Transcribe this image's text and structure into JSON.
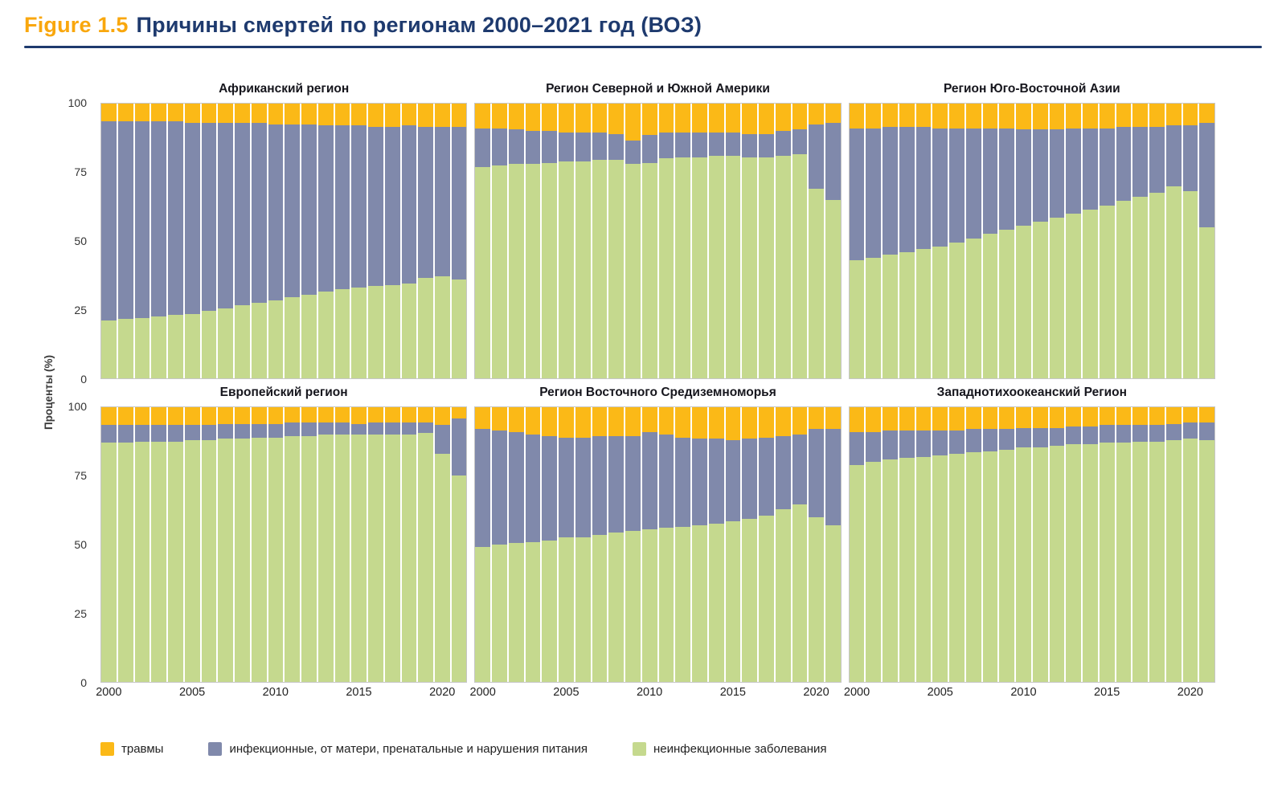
{
  "header": {
    "figure_label": "Figure 1.5",
    "title": "Причины смертей по регионам 2000–2021 год (ВОЗ)"
  },
  "colors": {
    "figure_orange": "#F9A70D",
    "accent_navy": "#1E3A6E",
    "injuries": "#FBB917",
    "infectious": "#8089AB",
    "ncd": "#C5D98E"
  },
  "axis": {
    "ylabel": "Проценты (%)",
    "yticks": [
      100,
      75,
      50,
      25,
      0
    ],
    "xticks": [
      2000,
      2005,
      2010,
      2015,
      2020
    ]
  },
  "legend": [
    {
      "key": "injuries",
      "label": "травмы"
    },
    {
      "key": "infectious",
      "label": "инфекционные, от матери, пренатальные и нарушения питания"
    },
    {
      "key": "ncd",
      "label": "неинфекционные заболевания"
    }
  ],
  "chart_data": {
    "type": "bar",
    "stacked": true,
    "percent": true,
    "ylim": [
      0,
      100
    ],
    "x": [
      2000,
      2001,
      2002,
      2003,
      2004,
      2005,
      2006,
      2007,
      2008,
      2009,
      2010,
      2011,
      2012,
      2013,
      2014,
      2015,
      2016,
      2017,
      2018,
      2019,
      2020,
      2021
    ],
    "regions": [
      {
        "name": "Африканский регион",
        "series": {
          "ncd": [
            21,
            21.5,
            22,
            22.5,
            23,
            23.5,
            24.5,
            25.5,
            26.5,
            27.5,
            28.5,
            29.5,
            30.5,
            31.5,
            32.5,
            33,
            33.5,
            34,
            34.5,
            36.5,
            37,
            36
          ],
          "infectious": [
            72.5,
            72,
            71.5,
            71,
            70.5,
            69.5,
            68.5,
            67.5,
            66.5,
            65.5,
            64,
            63,
            62,
            60.5,
            59.5,
            59,
            58,
            57.5,
            57.5,
            55,
            54.5,
            55.5
          ],
          "injuries": [
            6.5,
            6.5,
            6.5,
            6.5,
            6.5,
            7,
            7,
            7,
            7,
            7,
            7.5,
            7.5,
            7.5,
            8,
            8,
            8,
            8.5,
            8.5,
            8,
            8.5,
            8.5,
            8.5
          ]
        }
      },
      {
        "name": "Регион Северной и Южной Америки",
        "series": {
          "ncd": [
            77,
            77.5,
            78,
            78,
            78.5,
            79,
            79,
            79.5,
            79.5,
            78,
            78.5,
            80,
            80.5,
            80.5,
            81,
            81,
            80.5,
            80.5,
            81,
            81.5,
            69,
            65
          ],
          "infectious": [
            14,
            13.5,
            12.5,
            12,
            11.5,
            10.5,
            10.5,
            10,
            9.5,
            8.5,
            10,
            9.5,
            9,
            9,
            8.5,
            8.5,
            8.5,
            8.5,
            9,
            9,
            23.5,
            28
          ],
          "injuries": [
            9,
            9,
            9.5,
            10,
            10,
            10.5,
            10.5,
            10.5,
            11,
            13.5,
            11.5,
            10.5,
            10.5,
            10.5,
            10.5,
            10.5,
            11,
            11,
            10,
            9.5,
            7.5,
            7
          ]
        }
      },
      {
        "name": "Регион Юго-Восточной Азии",
        "series": {
          "ncd": [
            43,
            44,
            45,
            46,
            47,
            48,
            49.5,
            51,
            52.5,
            54,
            55.5,
            57,
            58.5,
            60,
            61.5,
            63,
            64.5,
            66,
            67.5,
            70,
            68,
            55
          ],
          "infectious": [
            48,
            47,
            46.5,
            45.5,
            44.5,
            43,
            41.5,
            40,
            38.5,
            37,
            35,
            33.5,
            32,
            31,
            29.5,
            28,
            27,
            25.5,
            24,
            22,
            24,
            38
          ],
          "injuries": [
            9,
            9,
            8.5,
            8.5,
            8.5,
            9,
            9,
            9,
            9,
            9,
            9.5,
            9.5,
            9.5,
            9,
            9,
            9,
            8.5,
            8.5,
            8.5,
            8,
            8,
            7
          ]
        }
      },
      {
        "name": "Европейский регион",
        "series": {
          "ncd": [
            87,
            87,
            87.5,
            87.5,
            87.5,
            88,
            88,
            88.5,
            88.5,
            89,
            89,
            89.5,
            89.5,
            90,
            90,
            90,
            90,
            90,
            90,
            90.5,
            83,
            75
          ],
          "infectious": [
            6.5,
            6.5,
            6,
            6,
            6,
            5.5,
            5.5,
            5.5,
            5.5,
            5,
            5,
            5,
            5,
            4.5,
            4.5,
            4,
            4.5,
            4.5,
            4.5,
            4,
            10.5,
            21
          ],
          "injuries": [
            6.5,
            6.5,
            6.5,
            6.5,
            6.5,
            6.5,
            6.5,
            6,
            6,
            6,
            6,
            5.5,
            5.5,
            5.5,
            5.5,
            6,
            5.5,
            5.5,
            5.5,
            5.5,
            6.5,
            4
          ]
        }
      },
      {
        "name": "Регион Восточного Средиземноморья",
        "series": {
          "ncd": [
            49,
            50,
            50.5,
            51,
            51.5,
            52.5,
            52.5,
            53.5,
            54.5,
            55,
            55.5,
            56,
            56.5,
            57,
            57.5,
            58.5,
            59.5,
            60.5,
            63,
            64.5,
            60,
            57
          ],
          "infectious": [
            43,
            41.5,
            40.5,
            39,
            38,
            36.5,
            36.5,
            36,
            35,
            34.5,
            35.5,
            34,
            32.5,
            31.5,
            31,
            29.5,
            29,
            28.5,
            26.5,
            25.5,
            32,
            35
          ],
          "injuries": [
            8,
            8.5,
            9,
            10,
            10.5,
            11,
            11,
            10.5,
            10.5,
            10.5,
            9,
            10,
            11,
            11.5,
            11.5,
            12,
            11.5,
            11,
            10.5,
            10,
            8,
            8
          ]
        }
      },
      {
        "name": "Западнотихоокеанский Регион",
        "series": {
          "ncd": [
            79,
            80,
            81,
            81.5,
            82,
            82.5,
            83,
            83.5,
            84,
            84.5,
            85.5,
            85.5,
            86,
            86.5,
            86.5,
            87,
            87,
            87.5,
            87.5,
            88,
            88.5,
            88
          ],
          "infectious": [
            12,
            11,
            10.5,
            10,
            9.5,
            9,
            8.5,
            8.5,
            8,
            7.5,
            7,
            7,
            6.5,
            6.5,
            6.5,
            6.5,
            6.5,
            6,
            6,
            6,
            6,
            6.5
          ],
          "injuries": [
            9,
            9,
            8.5,
            8.5,
            8.5,
            8.5,
            8.5,
            8,
            8,
            8,
            7.5,
            7.5,
            7.5,
            7,
            7,
            6.5,
            6.5,
            6.5,
            6.5,
            6,
            5.5,
            5.5
          ]
        }
      }
    ]
  }
}
